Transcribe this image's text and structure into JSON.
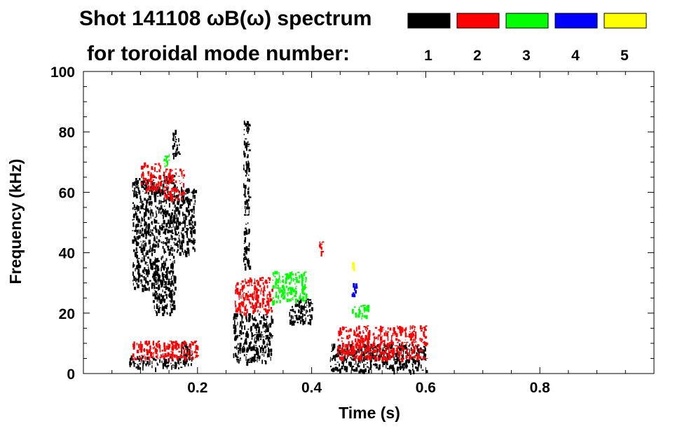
{
  "chart_data": {
    "type": "spectrogram",
    "title_line1": "Shot 141108 ωB(ω) spectrum",
    "title_line2": "for toroidal mode number:",
    "xlabel": "Time (s)",
    "ylabel": "Frequency (kHz)",
    "xlim": [
      0.0,
      1.0
    ],
    "ylim": [
      0,
      100
    ],
    "x_ticks": [
      {
        "value": 0.2,
        "label": "0.2"
      },
      {
        "value": 0.4,
        "label": "0.4"
      },
      {
        "value": 0.6,
        "label": "0.6"
      },
      {
        "value": 0.8,
        "label": "0.8"
      }
    ],
    "y_ticks": [
      {
        "value": 0,
        "label": "0"
      },
      {
        "value": 20,
        "label": "20"
      },
      {
        "value": 40,
        "label": "40"
      },
      {
        "value": 60,
        "label": "60"
      },
      {
        "value": 80,
        "label": "80"
      },
      {
        "value": 100,
        "label": "100"
      }
    ],
    "legend": [
      {
        "mode": "1",
        "color": "#000000"
      },
      {
        "mode": "2",
        "color": "#ff0000"
      },
      {
        "mode": "3",
        "color": "#00ff00"
      },
      {
        "mode": "4",
        "color": "#0000ff"
      },
      {
        "mode": "5",
        "color": "#ffff00"
      }
    ],
    "features": [
      {
        "mode": "1",
        "t": [
          0.085,
          0.12
        ],
        "f": [
          28,
          65
        ]
      },
      {
        "mode": "1",
        "t": [
          0.12,
          0.16
        ],
        "f": [
          20,
          66
        ]
      },
      {
        "mode": "1",
        "t": [
          0.155,
          0.168
        ],
        "f": [
          72,
          81
        ]
      },
      {
        "mode": "1",
        "t": [
          0.16,
          0.195
        ],
        "f": [
          40,
          62
        ]
      },
      {
        "mode": "1",
        "t": [
          0.08,
          0.17
        ],
        "f": [
          2,
          6
        ]
      },
      {
        "mode": "1",
        "t": [
          0.17,
          0.19
        ],
        "f": [
          3,
          11
        ]
      },
      {
        "mode": "1",
        "t": [
          0.262,
          0.33
        ],
        "f": [
          4,
          20
        ]
      },
      {
        "mode": "1",
        "t": [
          0.28,
          0.29
        ],
        "f": [
          35,
          84
        ]
      },
      {
        "mode": "1",
        "t": [
          0.36,
          0.4
        ],
        "f": [
          17,
          25
        ]
      },
      {
        "mode": "1",
        "t": [
          0.432,
          0.6
        ],
        "f": [
          1,
          10
        ]
      },
      {
        "mode": "2",
        "t": [
          0.1,
          0.135
        ],
        "f": [
          61,
          70
        ]
      },
      {
        "mode": "2",
        "t": [
          0.14,
          0.175
        ],
        "f": [
          58,
          68
        ]
      },
      {
        "mode": "2",
        "t": [
          0.085,
          0.2
        ],
        "f": [
          5,
          11
        ]
      },
      {
        "mode": "2",
        "t": [
          0.265,
          0.33
        ],
        "f": [
          20,
          32
        ]
      },
      {
        "mode": "2",
        "t": [
          0.445,
          0.6
        ],
        "f": [
          5,
          16
        ]
      },
      {
        "mode": "2",
        "t": [
          0.41,
          0.42
        ],
        "f": [
          40,
          44
        ]
      },
      {
        "mode": "3",
        "t": [
          0.14,
          0.15
        ],
        "f": [
          69,
          73
        ]
      },
      {
        "mode": "3",
        "t": [
          0.33,
          0.39
        ],
        "f": [
          24,
          34
        ]
      },
      {
        "mode": "3",
        "t": [
          0.47,
          0.5
        ],
        "f": [
          19,
          23
        ]
      },
      {
        "mode": "4",
        "t": [
          0.47,
          0.48
        ],
        "f": [
          26,
          30
        ]
      },
      {
        "mode": "5",
        "t": [
          0.47,
          0.473
        ],
        "f": [
          35,
          37
        ]
      }
    ]
  }
}
